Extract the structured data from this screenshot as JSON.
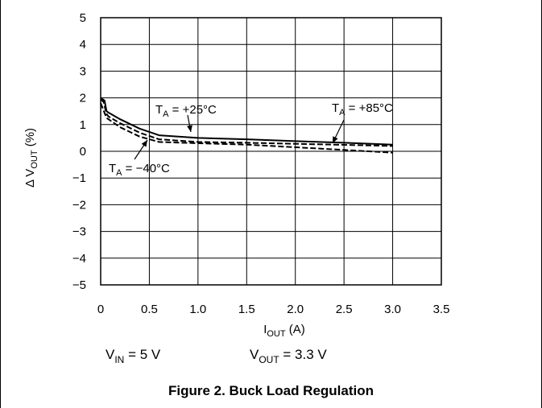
{
  "chart_data": {
    "type": "line",
    "xlabel": {
      "main": "I",
      "sub": "OUT",
      "unit": " (A)"
    },
    "ylabel": {
      "main": "Δ V",
      "sub": "OUT",
      "unit": " (%)"
    },
    "xlim": [
      0,
      3.5
    ],
    "ylim": [
      -5,
      5
    ],
    "xticks": [
      0,
      0.5,
      1.0,
      1.5,
      2.0,
      2.5,
      3.0,
      3.5
    ],
    "xtick_labels": [
      "0",
      "0.5",
      "1.0",
      "1.5",
      "2.0",
      "2.5",
      "3.0",
      "3.5"
    ],
    "yticks": [
      5,
      4,
      3,
      2,
      1,
      0,
      -1,
      -2,
      -3,
      -4,
      -5
    ],
    "ytick_labels": [
      "5",
      "4",
      "3",
      "2",
      "1",
      "0",
      "−1",
      "−2",
      "−3",
      "−4",
      "−5"
    ],
    "grid": true,
    "series": [
      {
        "name": "T_A = +25°C",
        "style": "solid",
        "x": [
          0,
          0.04,
          0.06,
          0.08,
          0.2,
          0.4,
          0.6,
          1.0,
          1.5,
          2.0,
          2.5,
          3.0
        ],
        "y": [
          2.0,
          1.9,
          1.5,
          1.45,
          1.2,
          0.85,
          0.6,
          0.5,
          0.45,
          0.38,
          0.32,
          0.25
        ]
      },
      {
        "name": "T_A = +85°C",
        "style": "dashed",
        "x": [
          0,
          0.03,
          0.06,
          0.08,
          0.2,
          0.4,
          0.6,
          1.0,
          1.5,
          2.0,
          2.5,
          3.0
        ],
        "y": [
          1.95,
          1.85,
          1.4,
          1.3,
          1.05,
          0.7,
          0.45,
          0.35,
          0.32,
          0.28,
          0.24,
          0.2
        ]
      },
      {
        "name": "T_A = −40°C",
        "style": "dashed",
        "x": [
          0,
          0.06,
          0.08,
          0.2,
          0.4,
          0.6,
          1.0,
          1.5,
          2.0,
          2.5,
          3.0
        ],
        "y": [
          1.8,
          1.25,
          1.2,
          0.9,
          0.55,
          0.35,
          0.3,
          0.25,
          0.15,
          0.05,
          -0.05
        ]
      }
    ],
    "annotations": [
      {
        "id": "t25",
        "main": "T",
        "sub": "A",
        "rest": " = +25°C"
      },
      {
        "id": "t85",
        "main": "T",
        "sub": "A",
        "rest": " = +85°C"
      },
      {
        "id": "tm40",
        "main": "T",
        "sub": "A",
        "rest": " = −40°C"
      }
    ],
    "conditions": [
      {
        "main": "V",
        "sub": "IN",
        "rest": " = 5 V"
      },
      {
        "main": "V",
        "sub": "OUT",
        "rest": " = 3.3 V"
      }
    ],
    "title": "Figure 2. Buck Load Regulation"
  }
}
